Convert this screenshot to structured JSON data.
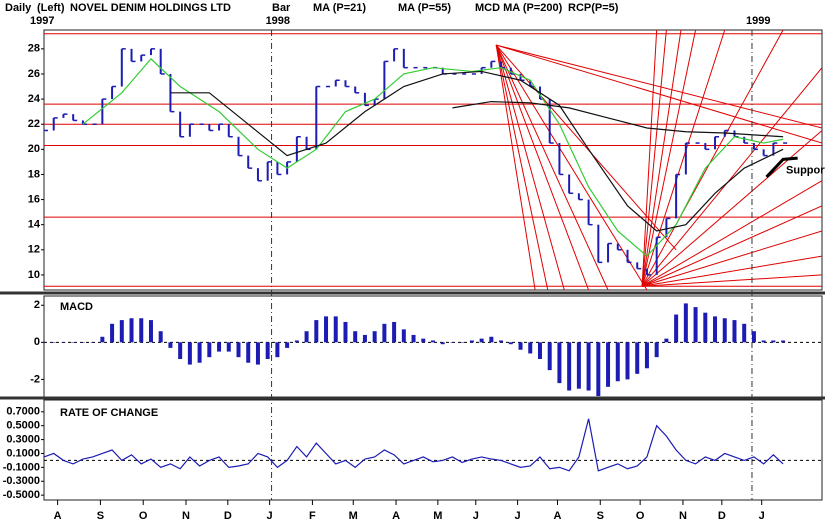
{
  "chart_data": [
    {
      "type": "bar",
      "title": "NOVEL DENIM HOLDINGS LTD",
      "period": "Daily",
      "scale_side": "(Left)",
      "xlim": [
        0,
        80
      ],
      "ylim": [
        8.8,
        29.5
      ],
      "yticks": [
        10,
        12,
        14,
        16,
        18,
        20,
        22,
        24,
        26,
        28
      ],
      "years": [
        {
          "value": 0,
          "label": "1997"
        },
        {
          "value": 23.4,
          "label": "1998"
        },
        {
          "value": 72.8,
          "label": "1999"
        }
      ],
      "series": [
        {
          "name": "Bar",
          "color": "#1c1cb4",
          "values": [
            21.5,
            22.5,
            22.8,
            22.3,
            22,
            22,
            24,
            25,
            28,
            27,
            27.5,
            28,
            26,
            23,
            21,
            22,
            22,
            21.5,
            22,
            21,
            19.5,
            18.5,
            17.5,
            19,
            18,
            19,
            21,
            20,
            25,
            25,
            25.5,
            25,
            24.5,
            23.5,
            24,
            27,
            28,
            26.5,
            26.5,
            26.5,
            26.5,
            26,
            26,
            26,
            26,
            26.5,
            27,
            26.5,
            26,
            25.5,
            25,
            24,
            20.5,
            18,
            16.5,
            16,
            14,
            11,
            12.5,
            12,
            11,
            10.5,
            10,
            13,
            14.5,
            18,
            20.5,
            20.5,
            20,
            21,
            21.5,
            21,
            20.5,
            20,
            19.5,
            20.5,
            20.5
          ]
        },
        {
          "name": "MA (P=21)",
          "color": "#33cc33",
          "x": [
            4,
            8,
            11,
            14,
            18,
            22,
            25,
            28,
            31,
            34,
            37,
            40,
            44,
            47,
            50,
            53,
            56,
            59,
            62,
            65,
            68,
            71,
            74,
            76
          ],
          "values": [
            22,
            24.5,
            27.2,
            25,
            23,
            20,
            18.5,
            20,
            23,
            24,
            26,
            26.5,
            26.2,
            26.5,
            25.5,
            22,
            17,
            13.5,
            11.5,
            14,
            18.5,
            21,
            20.5,
            20.8
          ]
        },
        {
          "name": "MA (P=55)",
          "color": "#111111",
          "x": [
            13,
            17,
            21,
            25,
            29,
            33,
            37,
            41,
            45,
            49,
            53,
            56,
            60,
            63,
            66,
            69,
            72,
            76
          ],
          "values": [
            24.5,
            24.5,
            22,
            19.5,
            20.5,
            23,
            25,
            26,
            26.2,
            25.5,
            23.5,
            20,
            15.5,
            13.5,
            14,
            16.5,
            18.5,
            20
          ]
        },
        {
          "name": "MCD MA (P=200)",
          "color": "#111111",
          "legend_color": "#1c1cb4",
          "x": [
            42,
            46,
            50,
            54,
            58,
            62,
            66,
            70,
            74,
            76
          ],
          "values": [
            23.3,
            23.8,
            23.7,
            23.3,
            22.5,
            21.7,
            21.4,
            21.3,
            21.1,
            21
          ]
        }
      ],
      "levels": [
        29.2,
        23.6,
        22.0,
        20.3,
        14.6,
        9.1
      ],
      "level_color": "#e00000",
      "fans": [
        {
          "from": [
            46.5,
            28.3
          ],
          "to": [
            [
              50.5,
              8.8
            ],
            [
              51.8,
              8.8
            ],
            [
              53.5,
              8.8
            ],
            [
              56,
              8.8
            ],
            [
              58,
              8.8
            ],
            [
              62,
              8.8
            ],
            [
              65,
              12
            ],
            [
              80,
              20.5
            ],
            [
              80,
              21.7
            ]
          ]
        },
        {
          "from": [
            61.5,
            9.1
          ],
          "to": [
            [
              63,
              29.5
            ],
            [
              64,
              29.5
            ],
            [
              65.5,
              29.5
            ],
            [
              67,
              29.5
            ],
            [
              70,
              29.5
            ],
            [
              76,
              29.5
            ],
            [
              80,
              26.5
            ],
            [
              80,
              21.5
            ],
            [
              80,
              17.5
            ],
            [
              80,
              15.5
            ],
            [
              80,
              13.5
            ],
            [
              80,
              11.5
            ],
            [
              80,
              10
            ]
          ]
        }
      ],
      "annotation": {
        "text": "Support",
        "x": 76.3,
        "y": 18.3,
        "line_x": [
          74.3,
          76,
          77.5
        ],
        "line_y": [
          17.8,
          19.2,
          19.3
        ]
      }
    },
    {
      "type": "bar",
      "title": "MACD",
      "xlim": [
        0,
        80
      ],
      "ylim": [
        -2.95,
        2.5
      ],
      "yticks": [
        -2,
        0,
        2
      ],
      "series": [
        {
          "name": "MACD",
          "color": "#1c1cb4",
          "values": [
            0,
            0,
            0,
            0,
            0,
            0,
            0.3,
            1,
            1.2,
            1.3,
            1.3,
            1.2,
            0.6,
            -0.3,
            -0.9,
            -1.2,
            -1.1,
            -0.8,
            -0.5,
            -0.5,
            -0.8,
            -1.1,
            -1.2,
            -0.9,
            -0.8,
            -0.3,
            0.1,
            0.6,
            1.2,
            1.4,
            1.4,
            1.1,
            0.6,
            0.4,
            0.6,
            1.0,
            1.1,
            0.7,
            0.4,
            0.2,
            0.1,
            -0.1,
            0,
            0,
            0.1,
            0.2,
            0.3,
            0.1,
            -0.1,
            -0.4,
            -0.6,
            -0.9,
            -1.5,
            -2.2,
            -2.6,
            -2.5,
            -2.6,
            -2.9,
            -2.4,
            -2.1,
            -2.0,
            -1.7,
            -1.4,
            -0.8,
            0.2,
            1.5,
            2.1,
            1.9,
            1.6,
            1.4,
            1.3,
            1.2,
            1.0,
            0.6,
            0.1,
            0.1,
            0.1
          ]
        }
      ]
    },
    {
      "type": "line",
      "title": "RATE OF CHANGE",
      "xlim": [
        0,
        80
      ],
      "ylim": [
        -0.57,
        0.87
      ],
      "yticks": [
        {
          "value": 0.7,
          "label": "0.7000"
        },
        {
          "value": 0.5,
          "label": "0.5000"
        },
        {
          "value": 0.3,
          "label": "0.3000"
        },
        {
          "value": 0.1,
          "label": "0.1000"
        },
        {
          "value": -0.1,
          "label": "-0.1000"
        },
        {
          "value": -0.3,
          "label": "-0.3000"
        },
        {
          "value": -0.5,
          "label": "-0.5000"
        }
      ],
      "xticks": [
        {
          "value": 1.4,
          "label": "A"
        },
        {
          "value": 5.8,
          "label": "S"
        },
        {
          "value": 10.2,
          "label": "O"
        },
        {
          "value": 14.6,
          "label": "N"
        },
        {
          "value": 18.9,
          "label": "D"
        },
        {
          "value": 23.2,
          "label": "J"
        },
        {
          "value": 27.6,
          "label": "F"
        },
        {
          "value": 31.8,
          "label": "M"
        },
        {
          "value": 36.2,
          "label": "A"
        },
        {
          "value": 40.5,
          "label": "M"
        },
        {
          "value": 44.4,
          "label": "J"
        },
        {
          "value": 48.7,
          "label": "J"
        },
        {
          "value": 52.8,
          "label": "A"
        },
        {
          "value": 57.2,
          "label": "S"
        },
        {
          "value": 61.3,
          "label": "O"
        },
        {
          "value": 65.7,
          "label": "N"
        },
        {
          "value": 69.7,
          "label": "D"
        },
        {
          "value": 73.8,
          "label": "J"
        }
      ],
      "series": [
        {
          "name": "RCP(P=5)",
          "color": "#1c1cb4",
          "values": [
            0.05,
            0.1,
            0.0,
            -0.05,
            0.02,
            0.05,
            0.1,
            0.15,
            0.0,
            0.08,
            -0.05,
            0.02,
            -0.1,
            -0.05,
            -0.12,
            0.05,
            -0.08,
            0.0,
            0.05,
            -0.1,
            -0.08,
            -0.05,
            0.1,
            0.05,
            -0.1,
            0.0,
            0.2,
            0.05,
            0.25,
            0.1,
            -0.05,
            0.0,
            -0.1,
            0.02,
            0.05,
            0.15,
            0.08,
            -0.05,
            0.0,
            0.05,
            -0.02,
            0.0,
            0.05,
            -0.03,
            0.02,
            0.05,
            0.02,
            0.0,
            -0.05,
            -0.1,
            -0.08,
            0.05,
            -0.12,
            -0.1,
            -0.15,
            0.05,
            0.6,
            -0.15,
            -0.1,
            -0.05,
            -0.12,
            -0.08,
            0.05,
            0.5,
            0.35,
            0.15,
            0.0,
            -0.05,
            0.05,
            0.0,
            0.1,
            0.05,
            0.0,
            0.05,
            -0.05,
            0.08,
            -0.05
          ]
        }
      ]
    }
  ]
}
